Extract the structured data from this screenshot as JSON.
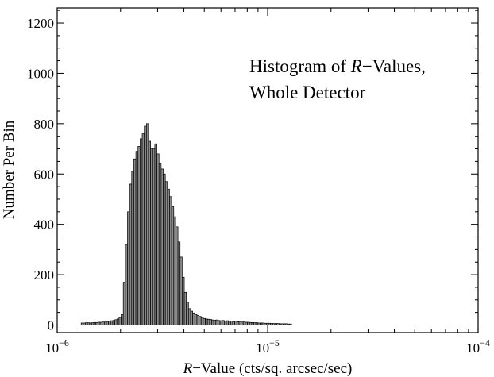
{
  "chart_data": {
    "type": "bar",
    "title": "",
    "annotation": {
      "line1_italic": "R",
      "line1_rest": "−Values,",
      "line1_prefix": "Histogram of ",
      "line2": "Whole Detector"
    },
    "xlabel_italic": "R",
    "xlabel_rest": "−Value (cts/sq. arcsec/sec)",
    "ylabel": "Number Per Bin",
    "x_scale": "log",
    "xlim": [
      1e-06,
      0.0001
    ],
    "ylim": [
      -30,
      1260
    ],
    "x_ticks": [
      {
        "value": 1e-06,
        "base": "10",
        "exp": "−6"
      },
      {
        "value": 1e-05,
        "base": "10",
        "exp": "−5"
      },
      {
        "value": 0.0001,
        "base": "10",
        "exp": "−4"
      }
    ],
    "y_ticks": [
      0,
      200,
      400,
      600,
      800,
      1000,
      1200
    ],
    "grid": false,
    "bin_width_log10": 0.01,
    "x_start": 1.3e-06,
    "values": [
      8,
      8,
      9,
      9,
      8,
      9,
      10,
      10,
      11,
      11,
      12,
      12,
      14,
      15,
      17,
      18,
      21,
      24,
      30,
      42,
      170,
      320,
      450,
      560,
      610,
      660,
      690,
      710,
      740,
      760,
      790,
      800,
      730,
      700,
      700,
      720,
      680,
      640,
      620,
      600,
      570,
      540,
      510,
      470,
      430,
      390,
      330,
      270,
      190,
      130,
      90,
      65,
      55,
      48,
      42,
      38,
      34,
      30,
      26,
      24,
      23,
      22,
      20,
      19,
      20,
      18,
      17,
      18,
      16,
      17,
      15,
      16,
      14,
      15,
      13,
      14,
      12,
      12,
      11,
      11,
      10,
      10,
      9,
      9,
      8,
      8,
      8,
      7,
      7,
      7,
      6,
      6,
      6,
      6,
      5,
      5,
      5,
      5,
      4,
      4
    ],
    "series_color": "#8a8a8a",
    "edge_color": "#000000"
  }
}
